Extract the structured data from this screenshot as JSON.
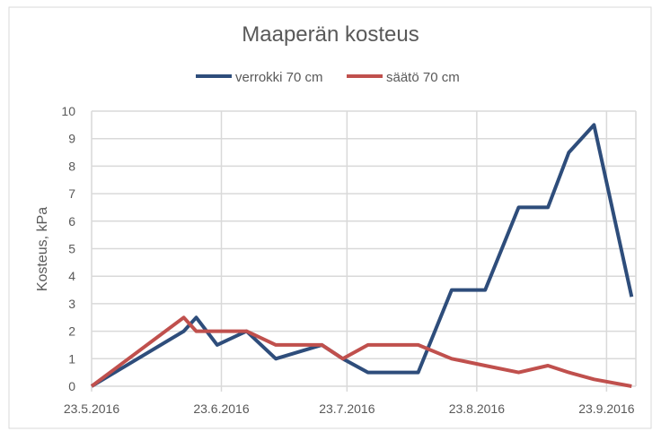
{
  "chart_data": {
    "type": "line",
    "title": "Maaperän kosteus",
    "xlabel": "",
    "ylabel": "Kosteus, kPa",
    "ylim": [
      0,
      10
    ],
    "yticks": [
      0,
      1,
      2,
      3,
      4,
      5,
      6,
      7,
      8,
      9,
      10
    ],
    "xlim": [
      "2016-05-23",
      "2016-09-30"
    ],
    "xticks": [
      {
        "date": "2016-05-23",
        "label": "23.5.2016"
      },
      {
        "date": "2016-06-23",
        "label": "23.6.2016"
      },
      {
        "date": "2016-07-23",
        "label": "23.7.2016"
      },
      {
        "date": "2016-08-23",
        "label": "23.8.2016"
      },
      {
        "date": "2016-09-23",
        "label": "23.9.2016"
      }
    ],
    "grid": true,
    "legend": "top",
    "x": [
      "2016-05-23",
      "2016-06-14",
      "2016-06-17",
      "2016-06-22",
      "2016-06-29",
      "2016-07-06",
      "2016-07-17",
      "2016-07-22",
      "2016-07-28",
      "2016-08-09",
      "2016-08-17",
      "2016-08-25",
      "2016-09-02",
      "2016-09-09",
      "2016-09-14",
      "2016-09-20",
      "2016-09-29"
    ],
    "series": [
      {
        "name": "verrokki 70 cm",
        "color": "#2E4D7B",
        "values": [
          0,
          2,
          2.5,
          1.5,
          2,
          1,
          1.5,
          1,
          0.5,
          0.5,
          3.5,
          3.5,
          6.5,
          6.5,
          8.5,
          9.5,
          3.25
        ]
      },
      {
        "name": "säätö 70 cm",
        "color": "#C0504D",
        "values": [
          0,
          2.5,
          2,
          2,
          2,
          1.5,
          1.5,
          1,
          1.5,
          1.5,
          1,
          0.75,
          0.5,
          0.75,
          0.5,
          0.25,
          0
        ]
      }
    ]
  }
}
